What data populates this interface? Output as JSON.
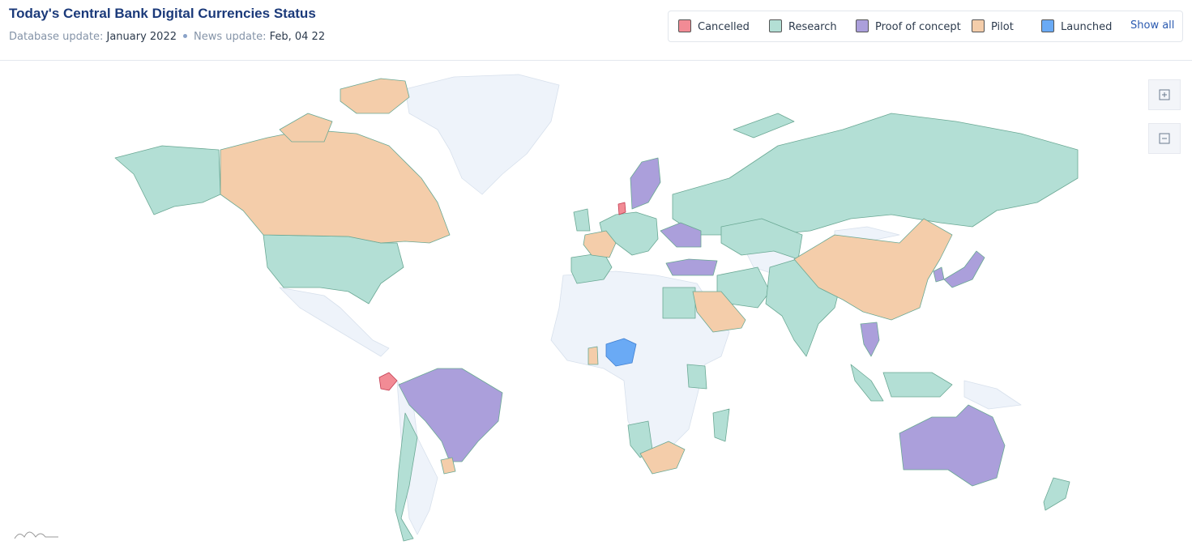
{
  "header": {
    "title": "Today's Central Bank Digital Currencies Status",
    "database_update_label": "Database update:",
    "database_update": "January 2022",
    "news_update_label": "News update:",
    "news_update": "Feb, 04 22"
  },
  "legend": {
    "items": [
      {
        "name": "Cancelled",
        "color": "#f28b95"
      },
      {
        "name": "Research",
        "color": "#b3dfd5"
      },
      {
        "name": "Proof of concept",
        "color": "#ab9fdb"
      },
      {
        "name": "Pilot",
        "color": "#f4cdaa"
      },
      {
        "name": "Launched",
        "color": "#6aaaf5"
      }
    ],
    "show_all": "Show all"
  }
}
